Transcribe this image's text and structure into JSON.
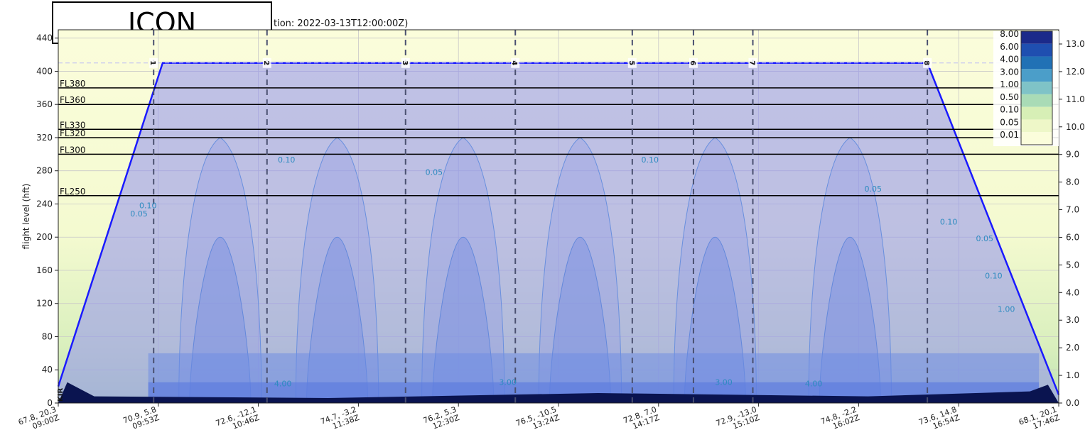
{
  "overlay_label": "ICON",
  "chart_data": {
    "type": "area",
    "title_visible": "tion: 2022-03-13T12:00:00Z)",
    "ylabel": "flight level (hft)",
    "ylim": [
      0,
      450
    ],
    "y_ticks": [
      0,
      40,
      80,
      120,
      160,
      200,
      240,
      280,
      320,
      360,
      400,
      440
    ],
    "right_axis_ticks": [
      "0.0",
      "1.0",
      "2.0",
      "3.0",
      "4.0",
      "5.0",
      "6.0",
      "7.0",
      "8.0",
      "9.0",
      "10.0",
      "11.0",
      "12.0",
      "13.0"
    ],
    "right_axis_label": "",
    "grid": true,
    "x_tick_labels": [
      {
        "coord": "67.8, 20.3",
        "time": "09:00Z"
      },
      {
        "coord": "70.9, 5.8",
        "time": "09:53Z"
      },
      {
        "coord": "72.6, -12.1",
        "time": "10:46Z"
      },
      {
        "coord": "74.7, -3.2",
        "time": "11:38Z"
      },
      {
        "coord": "76.2, 5.3",
        "time": "12:30Z"
      },
      {
        "coord": "76.5, -10.5",
        "time": "13:24Z"
      },
      {
        "coord": "72.8, 7.0",
        "time": "14:17Z"
      },
      {
        "coord": "72.9, -13.0",
        "time": "15:10Z"
      },
      {
        "coord": "74.8, -2.2",
        "time": "16:02Z"
      },
      {
        "coord": "73.6, 14.8",
        "time": "16:54Z"
      },
      {
        "coord": "68.1, 20.1",
        "time": "17:46Z"
      }
    ],
    "flight_levels": [
      {
        "label": "FL380",
        "value": 380
      },
      {
        "label": "FL360",
        "value": 360
      },
      {
        "label": "FL330",
        "value": 330
      },
      {
        "label": "FL320",
        "value": 320
      },
      {
        "label": "FL300",
        "value": 300
      },
      {
        "label": "FL250",
        "value": 250
      }
    ],
    "waypoints": [
      {
        "label": "KIR",
        "t": 0.0
      },
      {
        "label": "1",
        "t": 0.53
      },
      {
        "label": "2",
        "t": 1.16
      },
      {
        "label": "3",
        "t": 1.93
      },
      {
        "label": "4",
        "t": 2.54
      },
      {
        "label": "5",
        "t": 3.19
      },
      {
        "label": "6",
        "t": 3.53
      },
      {
        "label": "7",
        "t": 3.86
      },
      {
        "label": "8",
        "t": 4.83
      }
    ],
    "flight_path": [
      {
        "t": 0.0,
        "fl": 20
      },
      {
        "t": 0.58,
        "fl": 410
      },
      {
        "t": 4.83,
        "fl": 410
      },
      {
        "t": 5.56,
        "fl": 10
      }
    ],
    "colorbar": {
      "levels": [
        "8.00",
        "6.00",
        "4.00",
        "3.00",
        "1.00",
        "0.50",
        "0.10",
        "0.05",
        "0.01"
      ],
      "colors": [
        "#1b2a8a",
        "#1f4fb0",
        "#2171b5",
        "#4b9ec9",
        "#7fc3c7",
        "#a9dbb6",
        "#d7efb6",
        "#eef7c8",
        "#fbfddb"
      ]
    },
    "contour_labels": [
      "0.05",
      "0.10",
      "1.00",
      "3.00",
      "4.00"
    ],
    "colors": {
      "path": "#1a1aff",
      "fill": "#8f8ff0",
      "ground": "#0a1450",
      "hline": "#000000"
    }
  }
}
